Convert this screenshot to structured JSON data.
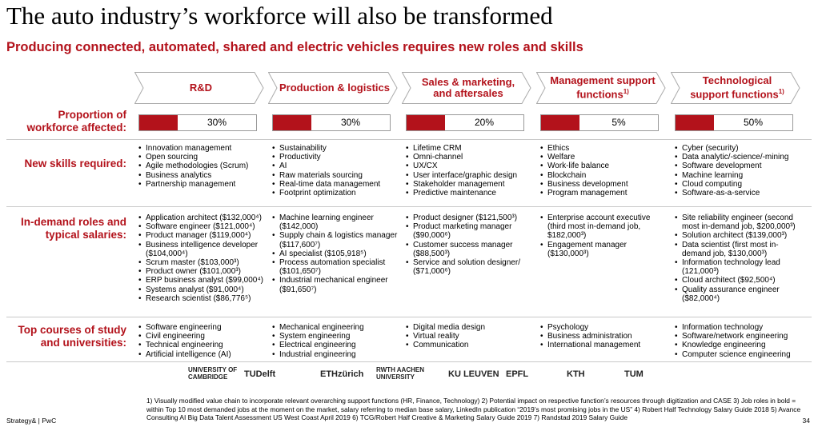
{
  "header": {
    "title": "The auto industry’s workforce will also be transformed",
    "subtitle": "Producing connected, automated, shared and electric vehicles requires new roles and skills"
  },
  "row_labels": {
    "proportion": "Proportion of workforce affected:",
    "skills": "New skills required:",
    "roles": "In-demand roles and typical salaries:",
    "courses": "Top courses of study and universities:"
  },
  "columns": [
    {
      "title": "R&D",
      "proportion": "30%",
      "skills": [
        "Innovation management",
        "Open sourcing",
        "Agile methodologies (Scrum)",
        "Business analytics",
        "Partnership management"
      ],
      "roles": [
        "Application architect ($132,000⁴)",
        "Software engineer ($121,000⁴)",
        "Product manager ($119,000⁴)",
        "Business intelligence developer ($104,000⁴)",
        "Scrum master ($103,000³)",
        "Product owner ($101,000³)",
        "ERP business analyst ($99,000⁴)",
        "Systems analyst ($91,000⁴)",
        "Research scientist ($86,776⁵)"
      ],
      "courses": [
        "Software engineering",
        "Civil engineering",
        "Technical engineering",
        "Artificial intelligence (AI)"
      ]
    },
    {
      "title": "Production & logistics",
      "proportion": "30%",
      "skills": [
        "Sustainability",
        "Productivity",
        "AI",
        "Raw materials sourcing",
        "Real-time data management",
        "Footprint optimization"
      ],
      "roles": [
        "Machine learning engineer ($142,000)",
        "Supply chain & logistics manager ($117,600⁷)",
        "AI specialist ($105,918⁵)",
        "Process automation specialist ($101,650⁷)",
        "Industrial mechanical engineer ($91,650⁷)"
      ],
      "courses": [
        "Mechanical engineering",
        "System engineering",
        "Electrical engineering",
        "Industrial engineering"
      ]
    },
    {
      "title": "Sales & marketing, and aftersales",
      "proportion": "20%",
      "skills": [
        "Lifetime CRM",
        "Omni-channel",
        "UX/CX",
        "User interface/graphic design",
        "Stakeholder management",
        "Predictive maintenance"
      ],
      "roles": [
        "Product designer ($121,500³)",
        "Product marketing manager ($90,000⁶)",
        "Customer success manager ($88,500³)",
        "Service and solution designer/ ($71,000⁶)"
      ],
      "courses": [
        "Digital media design",
        "Virtual reality",
        "Communication"
      ]
    },
    {
      "title": "Management support functions",
      "note": "1)",
      "proportion": "5%",
      "skills": [
        "Ethics",
        "Welfare",
        "Work-life balance",
        "Blockchain",
        "Business development",
        "Program management"
      ],
      "roles": [
        "Enterprise account executive (third most in-demand job, $182,000³)",
        "Engagement manager ($130,000³)"
      ],
      "courses": [
        "Psychology",
        "Business administration",
        "International management"
      ]
    },
    {
      "title": "Technological support functions",
      "note": "1)",
      "proportion": "50%",
      "skills": [
        "Cyber (security)",
        "Data analytic/-science/-mining",
        "Software development",
        "Machine learning",
        "Cloud computing",
        "Software-as-a-service"
      ],
      "roles": [
        "Site reliability engineer (second most in-demand job, $200,000³)",
        "Solution architect ($139,000³)",
        "Data scientist (first most in-demand job, $130,000³)",
        "Information technology lead (121,000³)",
        "Cloud architect ($92,500⁴)",
        "Quality assurance engineer ($82,000⁴)"
      ],
      "courses": [
        "Information technology",
        "Software/network engineering",
        "Knowledge engineering",
        "Computer science engineering"
      ]
    }
  ],
  "logos": [
    "UNIVERSITY OF CAMBRIDGE",
    "TUDelft",
    "ETHzürich",
    "RWTH AACHEN UNIVERSITY",
    "KU LEUVEN",
    "EPFL",
    "KTH",
    "TUM"
  ],
  "footnotes": "1) Visually modified value chain to incorporate relevant overarching support functions (HR, Finance, Technology) 2) Potential impact on respective function’s resources through digitization and CASE 3) Job roles in bold = within Top 10 most demanded jobs at the moment on the market, salary referring to median base salary, LinkedIn publication “2019’s most promising jobs in the US” 4) Robert Half Technology Salary Guide 2018 5) Avance Consulting AI Big Data Talent Assessment US West Coast April 2019 6) TCG/Robert Half Creative & Marketing Salary Guide 2019 7) Randstad 2019 Salary Guide",
  "footer": {
    "source": "Strategy& | PwC",
    "page": "34"
  }
}
